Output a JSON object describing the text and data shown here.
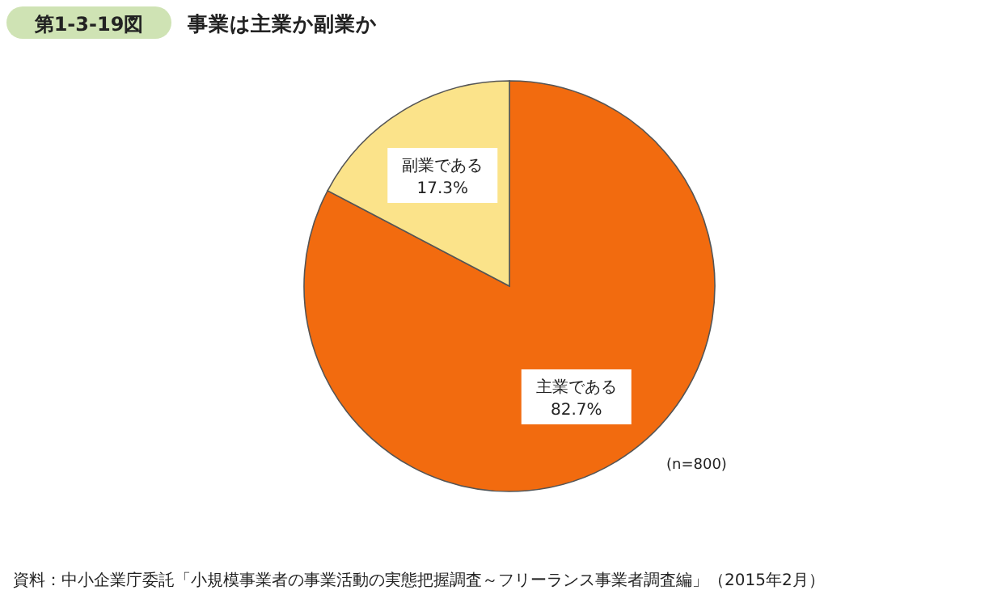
{
  "chart_data": {
    "type": "pie",
    "title": "事業は主業か副業か",
    "categories": [
      "主業である",
      "副業である"
    ],
    "values": [
      82.7,
      17.3
    ],
    "colors": [
      "#f26b0f",
      "#fbe38a"
    ],
    "value_labels": [
      "82.7%",
      "17.3%"
    ],
    "annotations": [
      "第1-3-19図",
      "(n=800)",
      "資料：中小企業庁委託「小規模事業者の事業活動の実態把握調査～フリーランス事業者調査編」（2015年2月）"
    ]
  }
}
